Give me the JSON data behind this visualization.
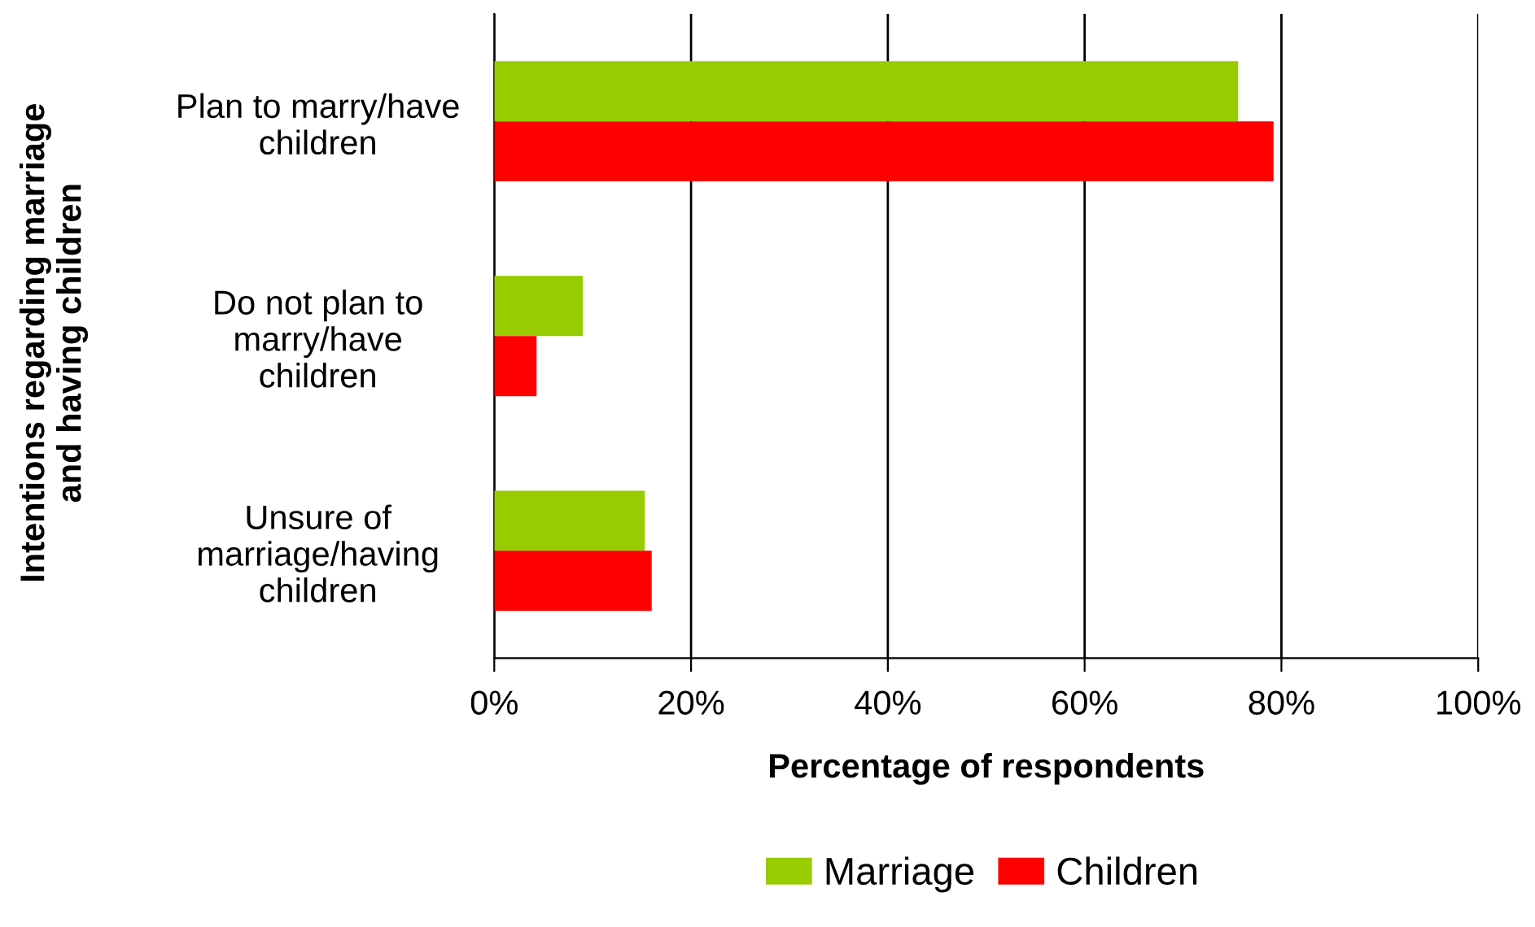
{
  "chart_data": {
    "type": "bar",
    "orientation": "horizontal",
    "categories": [
      "Plan to marry/have children",
      "Do not plan to marry/have children",
      "Unsure of marriage/having children"
    ],
    "series": [
      {
        "name": "Marriage",
        "color": "#99cc00",
        "values": [
          75.6,
          9.0,
          15.3
        ]
      },
      {
        "name": "Children",
        "color": "#ff0000",
        "values": [
          79.2,
          4.3,
          16.0
        ]
      }
    ],
    "xlabel": "Percentage of respondents",
    "ylabel": "Intentions regarding marriage and having children",
    "xlim": [
      0,
      100
    ],
    "xticks": [
      {
        "value": 0,
        "label": "0%"
      },
      {
        "value": 20,
        "label": "20%"
      },
      {
        "value": 40,
        "label": "40%"
      },
      {
        "value": 60,
        "label": "60%"
      },
      {
        "value": 80,
        "label": "80%"
      },
      {
        "value": 100,
        "label": "100%"
      }
    ],
    "grid": "x",
    "legend": "bottom"
  }
}
